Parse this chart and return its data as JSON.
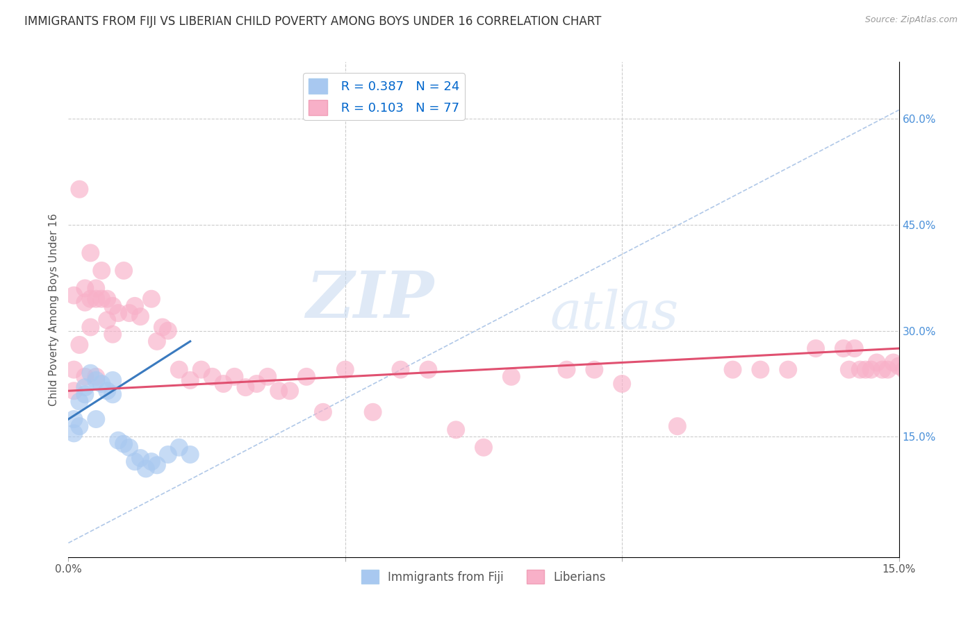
{
  "title": "IMMIGRANTS FROM FIJI VS LIBERIAN CHILD POVERTY AMONG BOYS UNDER 16 CORRELATION CHART",
  "source": "Source: ZipAtlas.com",
  "ylabel": "Child Poverty Among Boys Under 16",
  "xmin": 0.0,
  "xmax": 0.15,
  "ymin": -0.02,
  "ymax": 0.68,
  "right_yticks": [
    0.15,
    0.3,
    0.45,
    0.6
  ],
  "right_yticklabels": [
    "15.0%",
    "30.0%",
    "45.0%",
    "60.0%"
  ],
  "xticks": [
    0.0,
    0.05,
    0.1,
    0.15
  ],
  "xticklabels": [
    "0.0%",
    "",
    "",
    "15.0%"
  ],
  "fiji_r": 0.387,
  "fiji_n": 24,
  "liberian_r": 0.103,
  "liberian_n": 77,
  "fiji_color": "#a8c8f0",
  "liberian_color": "#f8b0c8",
  "fiji_line_color": "#3a7abf",
  "liberian_line_color": "#e05070",
  "fiji_scatter_x": [
    0.001,
    0.001,
    0.002,
    0.002,
    0.003,
    0.003,
    0.004,
    0.005,
    0.005,
    0.006,
    0.007,
    0.008,
    0.008,
    0.009,
    0.01,
    0.011,
    0.012,
    0.013,
    0.014,
    0.015,
    0.016,
    0.018,
    0.02,
    0.022
  ],
  "fiji_scatter_y": [
    0.175,
    0.155,
    0.2,
    0.165,
    0.22,
    0.21,
    0.24,
    0.175,
    0.23,
    0.225,
    0.215,
    0.21,
    0.23,
    0.145,
    0.14,
    0.135,
    0.115,
    0.12,
    0.105,
    0.115,
    0.11,
    0.125,
    0.135,
    0.125
  ],
  "liberian_scatter_x": [
    0.001,
    0.001,
    0.001,
    0.002,
    0.002,
    0.003,
    0.003,
    0.003,
    0.004,
    0.004,
    0.004,
    0.005,
    0.005,
    0.005,
    0.006,
    0.006,
    0.007,
    0.007,
    0.008,
    0.008,
    0.009,
    0.01,
    0.011,
    0.012,
    0.013,
    0.015,
    0.016,
    0.017,
    0.018,
    0.02,
    0.022,
    0.024,
    0.026,
    0.028,
    0.03,
    0.032,
    0.034,
    0.036,
    0.038,
    0.04,
    0.043,
    0.046,
    0.05,
    0.055,
    0.06,
    0.065,
    0.07,
    0.075,
    0.08,
    0.09,
    0.095,
    0.1,
    0.11,
    0.12,
    0.125,
    0.13,
    0.135,
    0.14,
    0.141,
    0.142,
    0.143,
    0.144,
    0.145,
    0.146,
    0.147,
    0.148,
    0.149,
    0.15,
    0.151,
    0.152,
    0.153,
    0.154,
    0.155,
    0.156,
    0.157,
    0.158,
    0.159
  ],
  "liberian_scatter_y": [
    0.215,
    0.245,
    0.35,
    0.28,
    0.5,
    0.34,
    0.36,
    0.235,
    0.345,
    0.41,
    0.305,
    0.345,
    0.36,
    0.235,
    0.385,
    0.345,
    0.345,
    0.315,
    0.335,
    0.295,
    0.325,
    0.385,
    0.325,
    0.335,
    0.32,
    0.345,
    0.285,
    0.305,
    0.3,
    0.245,
    0.23,
    0.245,
    0.235,
    0.225,
    0.235,
    0.22,
    0.225,
    0.235,
    0.215,
    0.215,
    0.235,
    0.185,
    0.245,
    0.185,
    0.245,
    0.245,
    0.16,
    0.135,
    0.235,
    0.245,
    0.245,
    0.225,
    0.165,
    0.245,
    0.245,
    0.245,
    0.275,
    0.275,
    0.245,
    0.275,
    0.245,
    0.245,
    0.245,
    0.255,
    0.245,
    0.245,
    0.255,
    0.25,
    0.245,
    0.245,
    0.245,
    0.255,
    0.245,
    0.245,
    0.255,
    0.245,
    0.245
  ],
  "fiji_trendline_x0": 0.0,
  "fiji_trendline_y0": 0.175,
  "fiji_trendline_x1": 0.022,
  "fiji_trendline_y1": 0.285,
  "lib_trendline_x0": 0.0,
  "lib_trendline_y0": 0.215,
  "lib_trendline_x1": 0.15,
  "lib_trendline_y1": 0.275,
  "watermark_zip": "ZIP",
  "watermark_atlas": "atlas",
  "background_color": "#ffffff",
  "grid_color": "#cccccc",
  "title_fontsize": 12,
  "axis_label_fontsize": 11,
  "tick_fontsize": 11
}
